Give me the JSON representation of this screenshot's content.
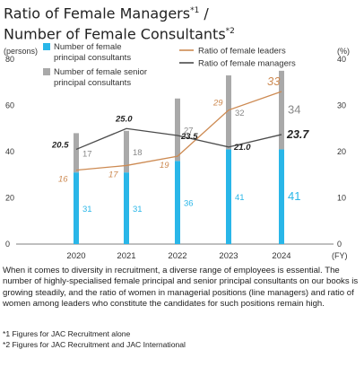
{
  "title_line1": "Ratio of Female Managers",
  "title_sup1": "*1",
  "title_sep": " /",
  "title_line2": "Number of Female Consultants",
  "title_sup2": "*2",
  "chart_data": {
    "type": "bar",
    "categories": [
      "2020",
      "2021",
      "2022",
      "2023",
      "2024"
    ],
    "x_unit": "(FY)",
    "left_axis": {
      "unit": "(persons)",
      "ticks": [
        0,
        20,
        40,
        60,
        80
      ],
      "ylim": [
        0,
        80
      ]
    },
    "right_axis": {
      "unit": "(%)",
      "ticks": [
        0,
        10,
        20,
        30,
        40
      ],
      "ylim": [
        0,
        40
      ]
    },
    "stacked": true,
    "series": [
      {
        "name": "Number of female principal consultants",
        "kind": "bar",
        "axis": "left",
        "color": "#29b6e8",
        "values": [
          31,
          31,
          36,
          41,
          41
        ]
      },
      {
        "name": "Number of female senior principal consultants",
        "kind": "bar",
        "axis": "left",
        "color": "#a9a9a9",
        "values": [
          17,
          18,
          27,
          32,
          34
        ]
      },
      {
        "name": "Ratio of female leaders",
        "kind": "line",
        "axis": "right",
        "color": "#cd8a52",
        "values": [
          16,
          17,
          19,
          29,
          33
        ]
      },
      {
        "name": "Ratio of female managers",
        "kind": "line",
        "axis": "right",
        "color": "#4b4b4b",
        "values": [
          20.5,
          25.0,
          23.5,
          21.0,
          23.7
        ]
      }
    ],
    "legend": [
      {
        "label_lines": [
          "Number of female",
          "principal consultants"
        ],
        "color": "#29b6e8",
        "kind": "square"
      },
      {
        "label_lines": [
          "Number of female senior",
          "principal consultants"
        ],
        "color": "#a9a9a9",
        "kind": "square"
      },
      {
        "label_lines": [
          "Ratio of female leaders"
        ],
        "color": "#cd8a52",
        "kind": "line"
      },
      {
        "label_lines": [
          "Ratio of female managers"
        ],
        "color": "#4b4b4b",
        "kind": "line"
      }
    ],
    "legend_placement": "top",
    "grid": false
  },
  "description": "When it comes to diversity in recruitment, a diverse range of employees is essential. The number of highly-specialised female principal and senior principal consultants on our books is growing steadily, and the ratio of women in managerial positions (line managers) and ratio of women among leaders who constitute the candidates for such positions remain high.",
  "footnote1": "*1 Figures for JAC Recruitment alone",
  "footnote2": "*2 Figures for JAC Recruitment and JAC International"
}
